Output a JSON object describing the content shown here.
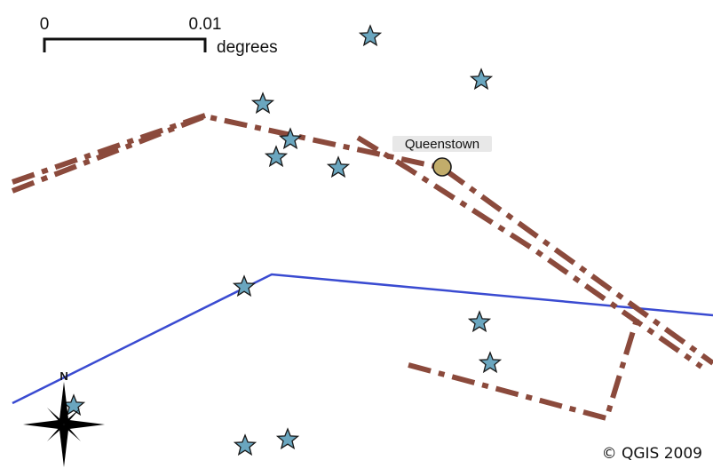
{
  "scale_bar": {
    "start_label": "0",
    "end_label": "0.01",
    "unit_label": "degrees"
  },
  "town": {
    "name": "Queenstown",
    "symbol_color": "#c2ad6b"
  },
  "north_arrow": {
    "label": "N"
  },
  "copyright": "© QGIS 2009",
  "colors": {
    "road": "#8b4a3c",
    "river": "#3a4bd1",
    "star_fill": "#6aa6bf",
    "star_stroke": "#1a1a1a"
  },
  "symbols": {
    "town_icon": "circle-point-icon",
    "poi_icon": "star-icon",
    "north_icon": "compass-rose-icon"
  }
}
